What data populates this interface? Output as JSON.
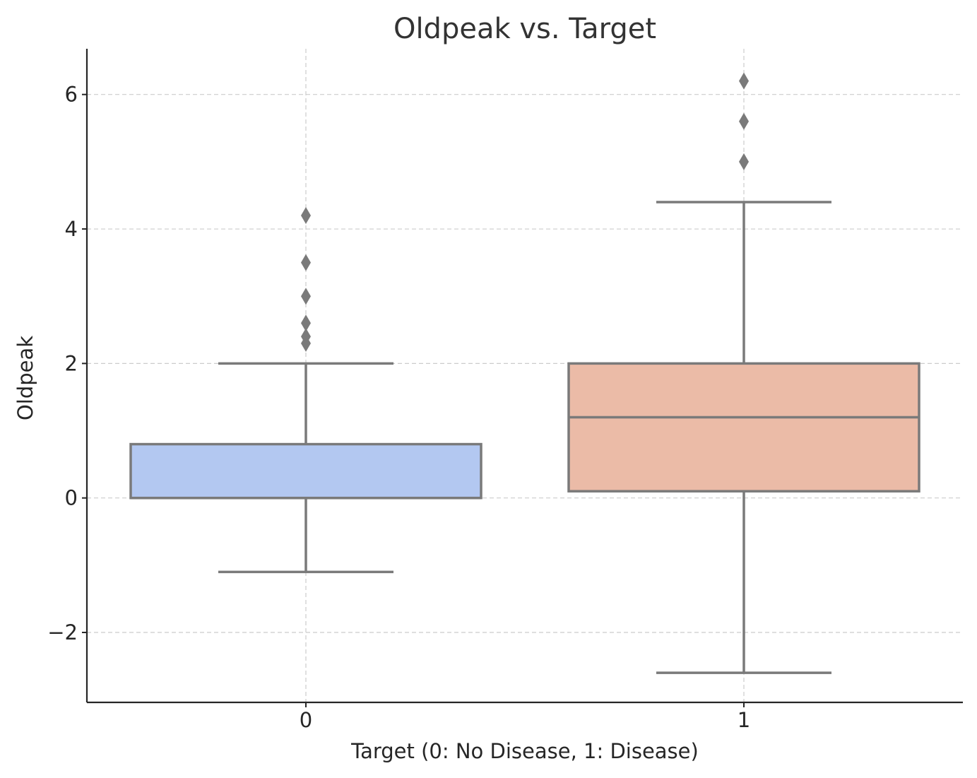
{
  "chart_data": {
    "type": "box",
    "title": "Oldpeak vs. Target",
    "xlabel": "Target (0: No Disease, 1: Disease)",
    "ylabel": "Oldpeak",
    "categories": [
      "0",
      "1"
    ],
    "ylim": [
      -3.04,
      6.68
    ],
    "yticks": [
      -2,
      0,
      2,
      4,
      6
    ],
    "ytick_labels": [
      "−2",
      "0",
      "2",
      "4",
      "6"
    ],
    "grid": true,
    "boxes": [
      {
        "category": "0",
        "color": "#b3c8f1",
        "whisker_low": -1.1,
        "q1": 0.0,
        "median": 0.0,
        "q3": 0.8,
        "whisker_high": 2.0,
        "outliers": [
          2.3,
          2.4,
          2.6,
          3.0,
          3.5,
          4.2
        ]
      },
      {
        "category": "1",
        "color": "#ebbba7",
        "whisker_low": -2.6,
        "q1": 0.1,
        "median": 1.2,
        "q3": 2.0,
        "whisker_high": 4.4,
        "outliers": [
          5.0,
          5.6,
          6.2
        ]
      }
    ]
  }
}
